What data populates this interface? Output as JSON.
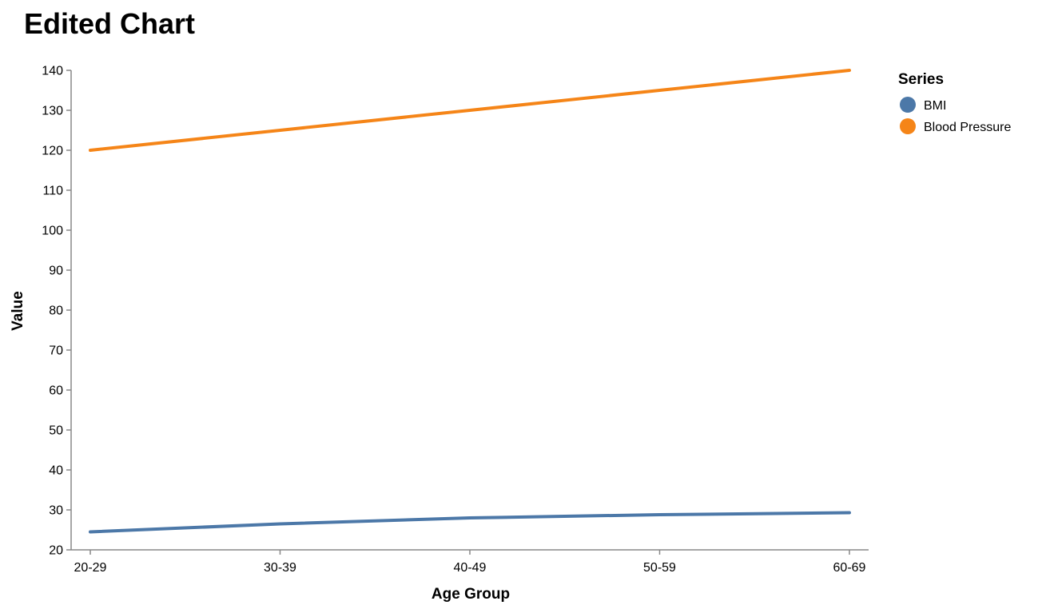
{
  "chart_data": {
    "type": "line",
    "title": "Edited Chart",
    "xlabel": "Age Group",
    "ylabel": "Value",
    "categories": [
      "20-29",
      "30-39",
      "40-49",
      "50-59",
      "60-69"
    ],
    "ylim": [
      20,
      140
    ],
    "yticks": [
      20,
      30,
      40,
      50,
      60,
      70,
      80,
      90,
      100,
      110,
      120,
      130,
      140
    ],
    "grid": false,
    "legend": {
      "title": "Series",
      "placement": "top-right"
    },
    "series": [
      {
        "name": "BMI",
        "color": "#4c78a8",
        "values": [
          24.5,
          26.5,
          28.0,
          28.8,
          29.3
        ]
      },
      {
        "name": "Blood Pressure",
        "color": "#f58518",
        "values": [
          120,
          125,
          130,
          135,
          140
        ]
      }
    ]
  }
}
